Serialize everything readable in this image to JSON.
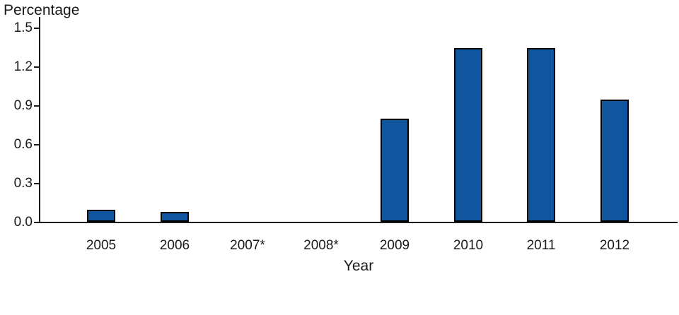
{
  "chart_data": {
    "type": "bar",
    "title": "",
    "ylabel": "Percentage",
    "xlabel": "Year",
    "categories": [
      "2005",
      "2006",
      "2007*",
      "2008*",
      "2009",
      "2010",
      "2011",
      "2012"
    ],
    "values": [
      0.1,
      0.08,
      0,
      0,
      0.8,
      1.35,
      1.35,
      0.95
    ],
    "ylim": [
      0,
      1.5
    ],
    "yticks": [
      0.0,
      0.3,
      0.6,
      0.9,
      1.2,
      1.5
    ],
    "ytick_label_format": "one-decimal",
    "grid": false,
    "legend": "none",
    "bar_color": "#10569E",
    "bar_border_color": "#000000",
    "axis_color": "#1A1A1A",
    "background_color": "#FFFFFF"
  }
}
